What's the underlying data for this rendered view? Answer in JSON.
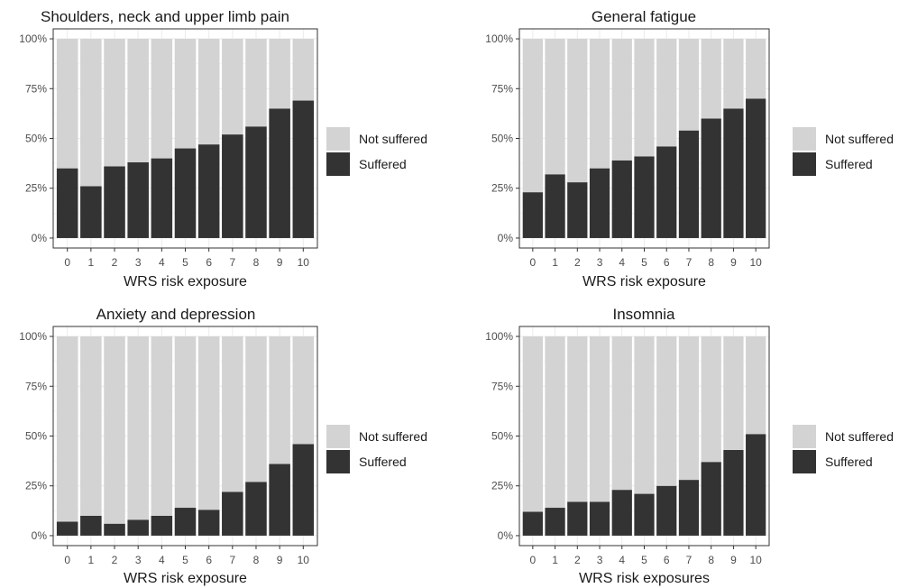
{
  "legend": {
    "items": [
      {
        "label": "Not suffered",
        "color": "#d3d3d3"
      },
      {
        "label": "Suffered",
        "color": "#333333"
      }
    ]
  },
  "chart_data": [
    {
      "type": "bar",
      "stacked": "percent",
      "title": "Shoulders, neck and upper limb pain",
      "xlabel": "WRS risk exposure",
      "ylabel": "",
      "categories": [
        "0",
        "1",
        "2",
        "3",
        "4",
        "5",
        "6",
        "7",
        "8",
        "9",
        "10"
      ],
      "yticks": [
        "0%",
        "25%",
        "50%",
        "75%",
        "100%"
      ],
      "ylim": [
        0,
        1
      ],
      "grid": true,
      "legend_position": "right",
      "series": [
        {
          "name": "Suffered",
          "values": [
            0.35,
            0.26,
            0.36,
            0.38,
            0.4,
            0.45,
            0.47,
            0.52,
            0.56,
            0.65,
            0.69
          ]
        },
        {
          "name": "Not suffered",
          "values": [
            0.65,
            0.74,
            0.64,
            0.62,
            0.6,
            0.55,
            0.53,
            0.48,
            0.44,
            0.35,
            0.31
          ]
        }
      ]
    },
    {
      "type": "bar",
      "stacked": "percent",
      "title": "General fatigue",
      "xlabel": "WRS risk exposure",
      "ylabel": "",
      "categories": [
        "0",
        "1",
        "2",
        "3",
        "4",
        "5",
        "6",
        "7",
        "8",
        "9",
        "10"
      ],
      "yticks": [
        "0%",
        "25%",
        "50%",
        "75%",
        "100%"
      ],
      "ylim": [
        0,
        1
      ],
      "grid": true,
      "legend_position": "right",
      "series": [
        {
          "name": "Suffered",
          "values": [
            0.23,
            0.32,
            0.28,
            0.35,
            0.39,
            0.41,
            0.46,
            0.54,
            0.6,
            0.65,
            0.7
          ]
        },
        {
          "name": "Not suffered",
          "values": [
            0.77,
            0.68,
            0.72,
            0.65,
            0.61,
            0.59,
            0.54,
            0.46,
            0.4,
            0.35,
            0.3
          ]
        }
      ]
    },
    {
      "type": "bar",
      "stacked": "percent",
      "title": "Anxiety and depression",
      "xlabel": "WRS risk exposure",
      "ylabel": "",
      "categories": [
        "0",
        "1",
        "2",
        "3",
        "4",
        "5",
        "6",
        "7",
        "8",
        "9",
        "10"
      ],
      "yticks": [
        "0%",
        "25%",
        "50%",
        "75%",
        "100%"
      ],
      "ylim": [
        0,
        1
      ],
      "grid": true,
      "legend_position": "right",
      "series": [
        {
          "name": "Suffered",
          "values": [
            0.07,
            0.1,
            0.06,
            0.08,
            0.1,
            0.14,
            0.13,
            0.22,
            0.27,
            0.36,
            0.46
          ]
        },
        {
          "name": "Not suffered",
          "values": [
            0.93,
            0.9,
            0.94,
            0.92,
            0.9,
            0.86,
            0.87,
            0.78,
            0.73,
            0.64,
            0.54
          ]
        }
      ]
    },
    {
      "type": "bar",
      "stacked": "percent",
      "title": "Insomnia",
      "xlabel": "WRS risk exposures",
      "ylabel": "",
      "categories": [
        "0",
        "1",
        "2",
        "3",
        "4",
        "5",
        "6",
        "7",
        "8",
        "9",
        "10"
      ],
      "yticks": [
        "0%",
        "25%",
        "50%",
        "75%",
        "100%"
      ],
      "ylim": [
        0,
        1
      ],
      "grid": true,
      "legend_position": "right",
      "series": [
        {
          "name": "Suffered",
          "values": [
            0.12,
            0.14,
            0.17,
            0.17,
            0.23,
            0.21,
            0.25,
            0.28,
            0.37,
            0.43,
            0.51
          ]
        },
        {
          "name": "Not suffered",
          "values": [
            0.88,
            0.86,
            0.83,
            0.83,
            0.77,
            0.79,
            0.75,
            0.72,
            0.63,
            0.57,
            0.49
          ]
        }
      ]
    }
  ]
}
